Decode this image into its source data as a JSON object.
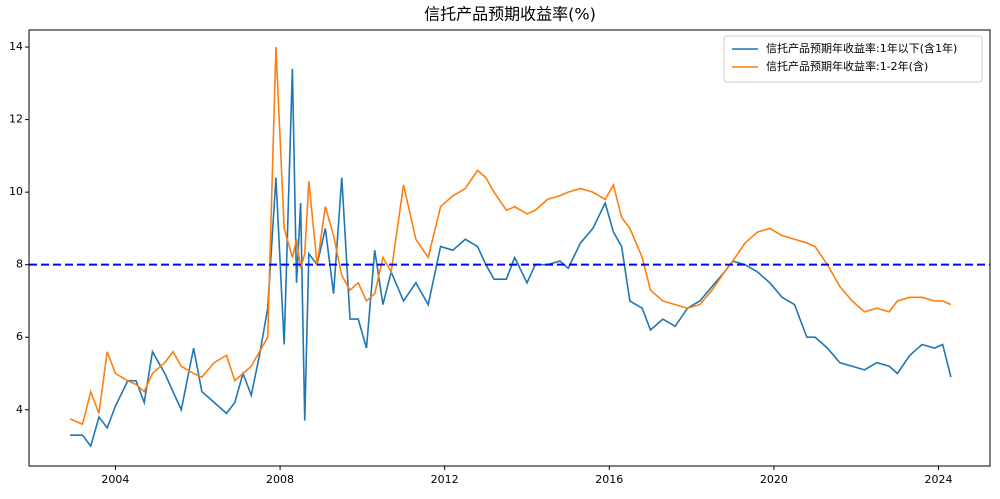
{
  "chart_data": {
    "type": "line",
    "title": "信托产品预期收益率(%)",
    "x": [
      2002.9,
      2003.2,
      2003.4,
      2003.6,
      2003.8,
      2004.0,
      2004.3,
      2004.5,
      2004.7,
      2004.9,
      2005.2,
      2005.4,
      2005.6,
      2005.9,
      2006.1,
      2006.4,
      2006.7,
      2006.9,
      2007.1,
      2007.3,
      2007.5,
      2007.7,
      2007.9,
      2008.1,
      2008.3,
      2008.4,
      2008.5,
      2008.6,
      2008.7,
      2008.9,
      2009.1,
      2009.3,
      2009.5,
      2009.7,
      2009.9,
      2010.1,
      2010.3,
      2010.5,
      2010.7,
      2011.0,
      2011.3,
      2011.6,
      2011.9,
      2012.2,
      2012.5,
      2012.8,
      2013.0,
      2013.2,
      2013.5,
      2013.7,
      2014.0,
      2014.2,
      2014.5,
      2014.8,
      2015.0,
      2015.3,
      2015.6,
      2015.9,
      2016.1,
      2016.3,
      2016.5,
      2016.8,
      2017.0,
      2017.3,
      2017.6,
      2017.9,
      2018.2,
      2018.5,
      2018.8,
      2019.0,
      2019.3,
      2019.6,
      2019.9,
      2020.2,
      2020.5,
      2020.8,
      2021.0,
      2021.3,
      2021.6,
      2021.9,
      2022.2,
      2022.5,
      2022.8,
      2023.0,
      2023.3,
      2023.6,
      2023.9,
      2024.1,
      2024.3
    ],
    "series": [
      {
        "name": "信托产品预期年收益率:1年以下(含1年)",
        "color": "#1f77b4",
        "values": [
          3.3,
          3.3,
          3.0,
          3.8,
          3.5,
          4.1,
          4.8,
          4.8,
          4.2,
          5.6,
          5.0,
          4.5,
          4.0,
          5.7,
          4.5,
          4.2,
          3.9,
          4.2,
          5.0,
          4.4,
          5.5,
          6.8,
          10.4,
          5.8,
          13.4,
          7.5,
          9.7,
          3.7,
          8.3,
          8.0,
          9.0,
          7.2,
          10.4,
          6.5,
          6.5,
          5.7,
          8.4,
          6.9,
          7.8,
          7.0,
          7.5,
          6.9,
          8.5,
          8.4,
          8.7,
          8.5,
          8.0,
          7.6,
          7.6,
          8.2,
          7.5,
          8.0,
          8.0,
          8.1,
          7.9,
          8.6,
          9.0,
          9.7,
          8.9,
          8.5,
          7.0,
          6.8,
          6.2,
          6.5,
          6.3,
          6.8,
          7.0,
          7.4,
          7.8,
          8.1,
          8.0,
          7.8,
          7.5,
          7.1,
          6.9,
          6.0,
          6.0,
          5.7,
          5.3,
          5.2,
          5.1,
          5.3,
          5.2,
          5.0,
          5.5,
          5.8,
          5.7,
          5.8,
          4.9
        ]
      },
      {
        "name": "信托产品预期年收益率:1-2年(含)",
        "color": "#ff7f0e",
        "values": [
          3.75,
          3.6,
          4.5,
          3.9,
          5.6,
          5.0,
          4.8,
          4.7,
          4.5,
          5.0,
          5.3,
          5.6,
          5.2,
          5.0,
          4.9,
          5.3,
          5.5,
          4.8,
          5.0,
          5.2,
          5.6,
          6.0,
          14.0,
          9.0,
          8.2,
          8.7,
          7.9,
          8.3,
          10.3,
          8.0,
          9.6,
          8.8,
          7.7,
          7.3,
          7.5,
          7.0,
          7.2,
          8.2,
          7.8,
          10.2,
          8.7,
          8.2,
          9.6,
          9.9,
          10.1,
          10.6,
          10.4,
          10.0,
          9.5,
          9.6,
          9.4,
          9.5,
          9.8,
          9.9,
          10.0,
          10.1,
          10.0,
          9.8,
          10.2,
          9.3,
          9.0,
          8.2,
          7.3,
          7.0,
          6.9,
          6.8,
          6.9,
          7.3,
          7.8,
          8.1,
          8.6,
          8.9,
          9.0,
          8.8,
          8.7,
          8.6,
          8.5,
          8.0,
          7.4,
          7.0,
          6.7,
          6.8,
          6.7,
          7.0,
          7.1,
          7.1,
          7.0,
          7.0,
          6.9
        ]
      }
    ],
    "reference_line": {
      "value": 8,
      "color": "#0000ff"
    },
    "xlim": [
      2001.9,
      2025.25
    ],
    "xticks": [
      2004,
      2008,
      2012,
      2016,
      2020,
      2024
    ],
    "ylim": [
      2.45,
      14.47
    ],
    "yticks": [
      4,
      6,
      8,
      10,
      12,
      14
    ],
    "grid": false,
    "legend": "upper right"
  }
}
